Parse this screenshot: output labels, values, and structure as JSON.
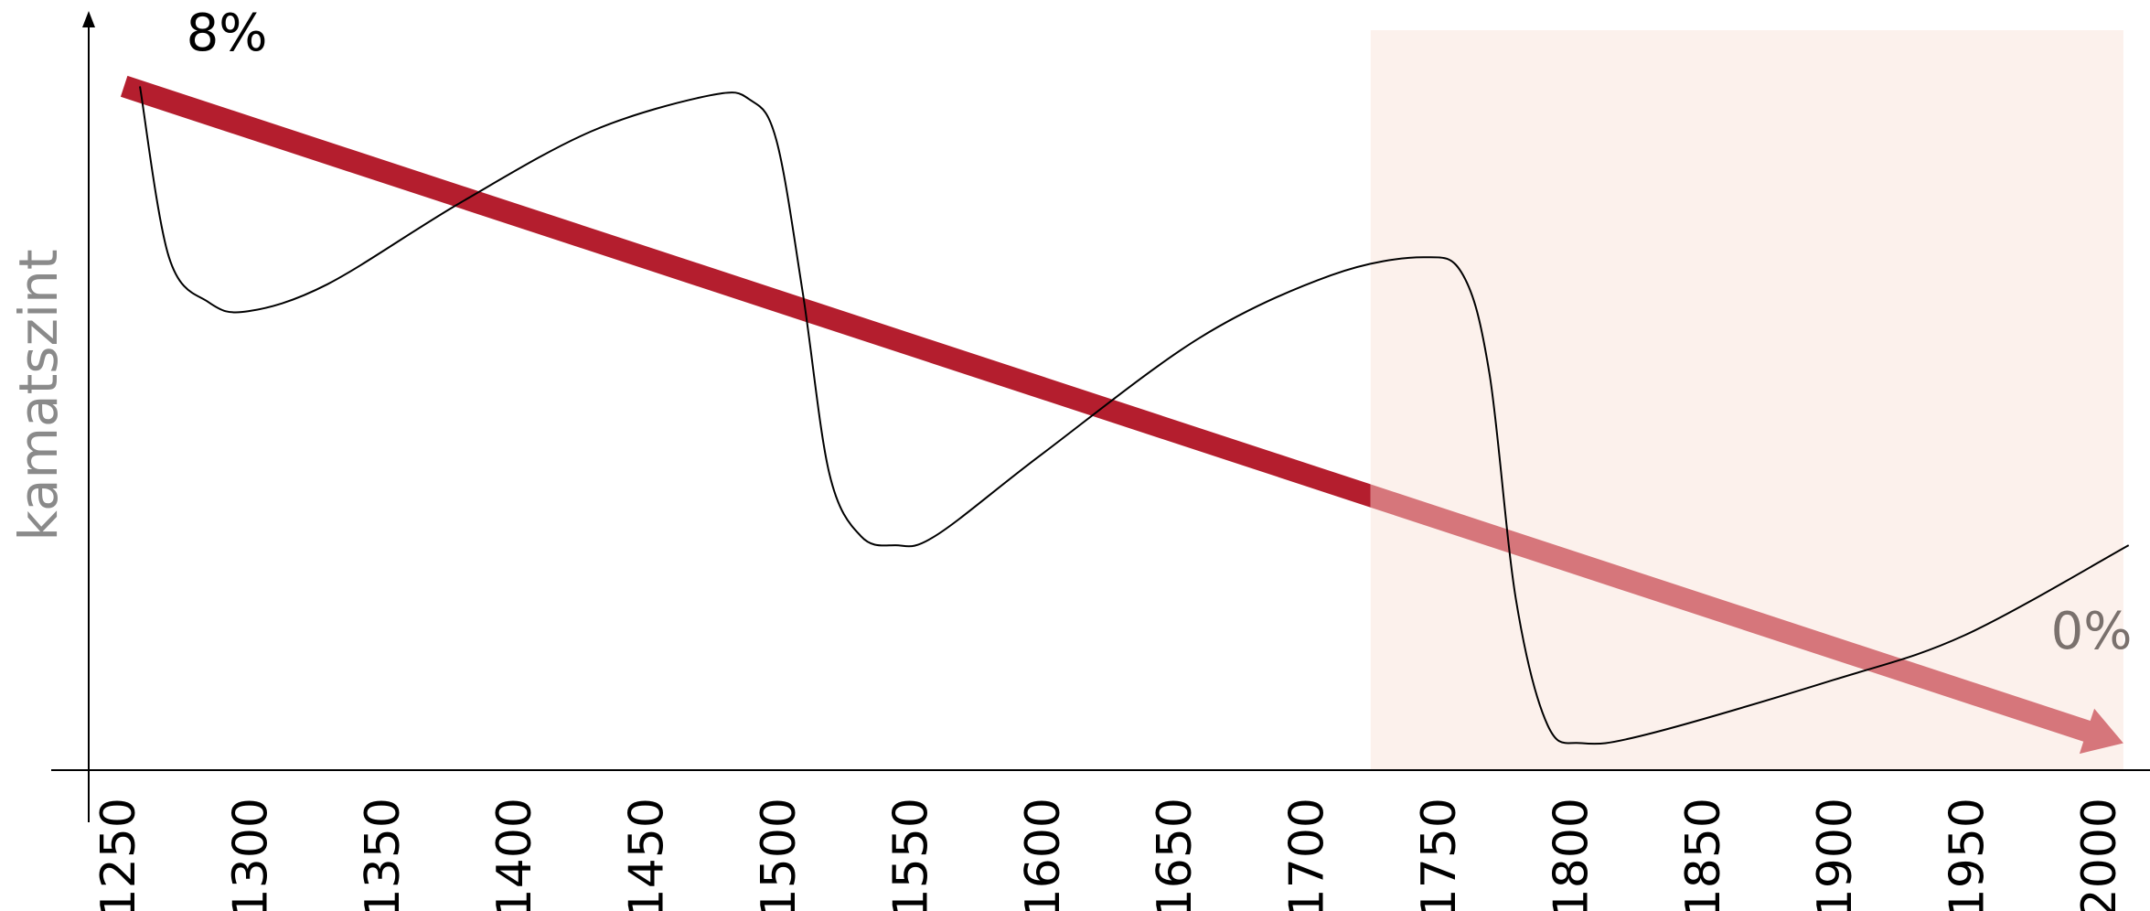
{
  "chart_data": {
    "type": "line",
    "title": "",
    "xlabel": "",
    "ylabel": "kamatszint",
    "xlim": [
      1250,
      2000
    ],
    "ylim": [
      0,
      8
    ],
    "grid": false,
    "x_ticks": [
      "1250",
      "1300",
      "1350",
      "1400",
      "1450",
      "1500",
      "1550",
      "1600",
      "1650",
      "1700",
      "1750",
      "1800",
      "1850",
      "1900",
      "1950",
      "2000"
    ],
    "annotations": {
      "start_label": "8%",
      "end_label": "0%"
    },
    "shaded_region": {
      "x_start": 1725,
      "x_end": 2010
    },
    "trend": {
      "x": [
        1253,
        2010
      ],
      "y": [
        7.6,
        0.3
      ]
    },
    "series": [
      {
        "values_x": [
          1259,
          1270,
          1285,
          1300,
          1330,
          1380,
          1430,
          1475,
          1490,
          1500,
          1510,
          1520,
          1532,
          1545,
          1560,
          1600,
          1660,
          1710,
          1745,
          1760,
          1770,
          1780,
          1792,
          1805,
          1830,
          1900,
          1950,
          2012
        ],
        "values_y": [
          7.6,
          5.7,
          5.2,
          5.1,
          5.4,
          6.3,
          7.1,
          7.5,
          7.45,
          7.0,
          5.3,
          3.3,
          2.6,
          2.5,
          2.6,
          3.5,
          4.8,
          5.5,
          5.7,
          5.5,
          4.4,
          1.9,
          0.5,
          0.3,
          0.4,
          1.0,
          1.5,
          2.5
        ]
      }
    ]
  },
  "colors": {
    "trend_solid": "#b41e2e",
    "trend_light": "#d6767b",
    "shade": "#fcf1ec",
    "curve": "#000000",
    "ylabel": "#8a8a8a",
    "end_label": "#7a716d"
  }
}
